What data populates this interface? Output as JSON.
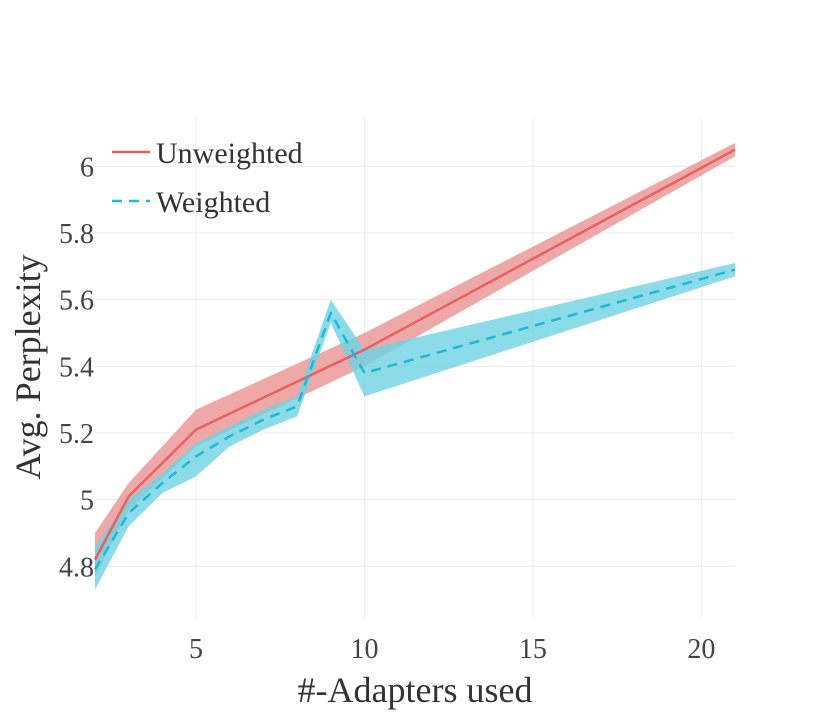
{
  "chart_data": {
    "type": "line",
    "title": "",
    "xlabel": "#-Adapters used",
    "ylabel": "Avg. Perplexity",
    "xlim": [
      2,
      21
    ],
    "ylim": [
      4.645,
      6.145
    ],
    "x_ticks": [
      5,
      10,
      15,
      20
    ],
    "y_ticks": [
      4.8,
      5,
      5.2,
      5.4,
      5.6,
      5.8,
      6
    ],
    "y_tick_labels": [
      "4.8",
      "5",
      "5.2",
      "5.4",
      "5.6",
      "5.8",
      "6"
    ],
    "grid": true,
    "legend_position": "top-left",
    "series": [
      {
        "name": "Unweighted",
        "color": "#e8605f",
        "band_color": "#eb8f8f",
        "line_style": "solid",
        "x": [
          2,
          3,
          5,
          10,
          21
        ],
        "y": [
          4.82,
          5.01,
          5.21,
          5.45,
          6.05
        ],
        "y_lower": [
          4.77,
          4.97,
          5.16,
          5.4,
          6.03
        ],
        "y_upper": [
          4.9,
          5.05,
          5.27,
          5.5,
          6.07
        ]
      },
      {
        "name": "Weighted",
        "color": "#1fb8d6",
        "band_color": "#72d3e3",
        "line_style": "dashed",
        "x": [
          2,
          3,
          4,
          5,
          6,
          7,
          8,
          9,
          10,
          21
        ],
        "y": [
          4.79,
          4.96,
          5.05,
          5.13,
          5.19,
          5.24,
          5.28,
          5.56,
          5.38,
          5.69
        ],
        "y_lower": [
          4.73,
          4.92,
          5.02,
          5.07,
          5.16,
          5.21,
          5.25,
          5.53,
          5.31,
          5.67
        ],
        "y_upper": [
          4.86,
          5.0,
          5.08,
          5.17,
          5.22,
          5.27,
          5.31,
          5.6,
          5.45,
          5.71
        ]
      }
    ]
  }
}
